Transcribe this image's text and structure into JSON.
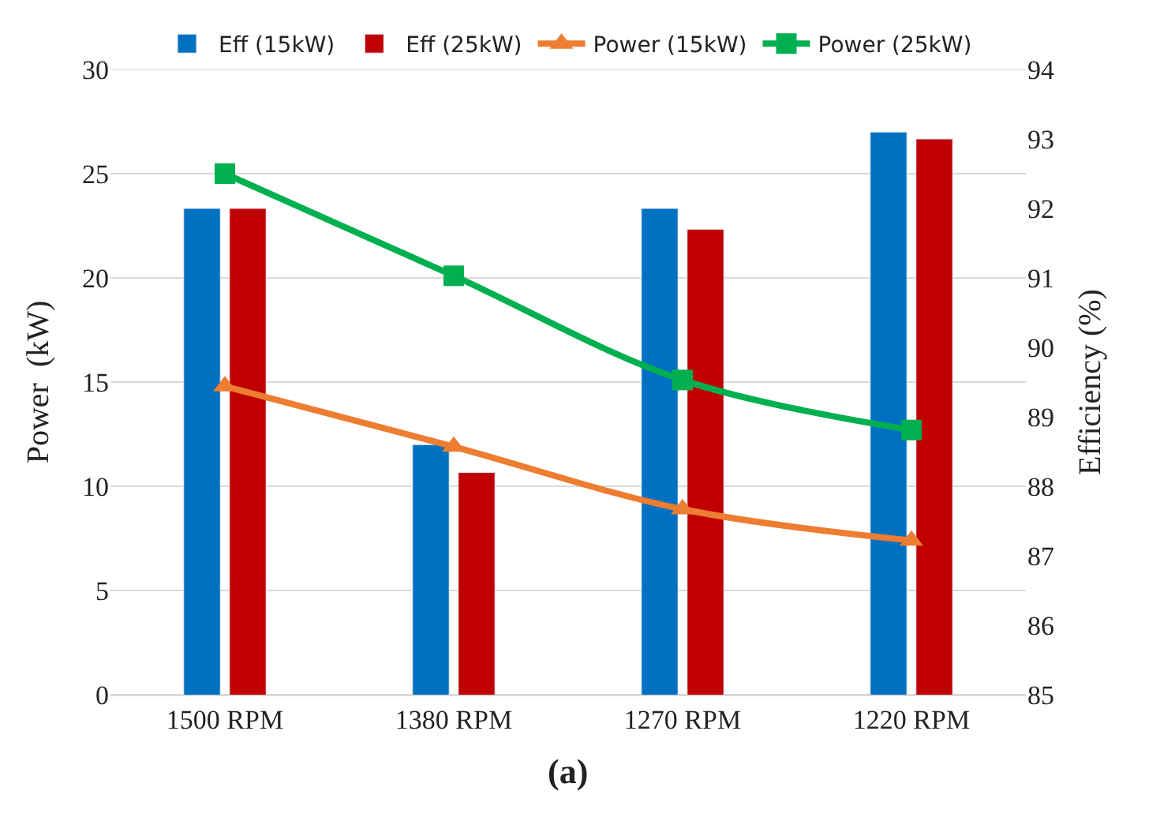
{
  "chart_data": {
    "type": "bar",
    "categories": [
      "1500 RPM",
      "1380 RPM",
      "1270 RPM",
      "1220 RPM"
    ],
    "series": [
      {
        "name": "Eff (15kW)",
        "color": "#0070c0",
        "values": [
          92.0,
          88.6,
          92.0,
          93.1
        ],
        "axis": "y2"
      },
      {
        "name": "Eff (25kW)",
        "color": "#c00000",
        "values": [
          92.0,
          88.2,
          91.7,
          93.0
        ],
        "axis": "y2"
      },
      {
        "name": "Power (15kW)",
        "type": "line",
        "color": "#ed7d31",
        "marker": "triangle",
        "values": [
          14.8,
          11.9,
          8.9,
          7.4
        ]
      },
      {
        "name": "Power (25kW)",
        "type": "line",
        "color": "#00b050",
        "marker": "square",
        "values": [
          25.0,
          20.1,
          15.1,
          12.7
        ]
      }
    ],
    "ylabel": "Power  (kW)",
    "y2label": "Efficiency (%)",
    "ylim": [
      0,
      30
    ],
    "yticks": [
      0,
      5,
      10,
      15,
      20,
      25,
      30
    ],
    "y2lim": [
      85,
      94
    ],
    "y2ticks": [
      85,
      86,
      87,
      88,
      89,
      90,
      91,
      92,
      93,
      94
    ],
    "grid": "y",
    "legend": "top",
    "line_style": "solid",
    "annotations": [
      "(a)"
    ]
  }
}
